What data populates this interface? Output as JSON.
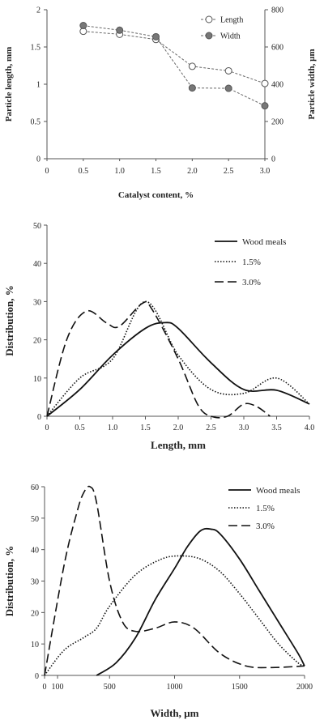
{
  "chart_data": [
    {
      "type": "line",
      "title": "",
      "xlabel": "Catalyst content, %",
      "ylabel": "Particle length, mm",
      "y2label": "Particle width, µm",
      "xlim": [
        0,
        3.0
      ],
      "ylim": [
        0,
        2
      ],
      "y2lim": [
        0,
        800
      ],
      "x_ticks": [
        "0",
        "0.5",
        "1.0",
        "1.5",
        "2.0",
        "2.5",
        "3.0"
      ],
      "y_ticks": [
        "0",
        "0.5",
        "1",
        "1.5",
        "2"
      ],
      "y2_ticks": [
        "0",
        "200",
        "400",
        "600",
        "800"
      ],
      "legend_position": "top-right",
      "x": [
        0.5,
        1.0,
        1.5,
        2.0,
        2.5,
        3.0
      ],
      "series": [
        {
          "name": "Length",
          "axis": "left",
          "marker": "open-circle",
          "values": [
            1.71,
            1.67,
            1.6,
            1.24,
            1.18,
            1.01
          ]
        },
        {
          "name": "Width",
          "axis": "right",
          "marker": "filled-circle",
          "values": [
            715,
            690,
            655,
            380,
            378,
            284
          ]
        }
      ]
    },
    {
      "type": "line",
      "title": "",
      "xlabel": "Length, mm",
      "ylabel": "Distribution, %",
      "xlim": [
        0,
        4.0
      ],
      "ylim": [
        0,
        50
      ],
      "x_ticks": [
        "0",
        "0.5",
        "1.0",
        "1.5",
        "2.0",
        "2.5",
        "3.0",
        "3.5",
        "4.0"
      ],
      "y_ticks": [
        "0",
        "10",
        "20",
        "30",
        "40",
        "50"
      ],
      "legend_position": "top-right",
      "series": [
        {
          "name": "Wood meals",
          "style": "solid",
          "points": [
            [
              0,
              0
            ],
            [
              0.5,
              7
            ],
            [
              1.0,
              16
            ],
            [
              1.5,
              23
            ],
            [
              1.8,
              24.5
            ],
            [
              2.0,
              23
            ],
            [
              2.5,
              14
            ],
            [
              3.0,
              7
            ],
            [
              3.5,
              6.8
            ],
            [
              4.0,
              3.2
            ]
          ]
        },
        {
          "name": "1.5%",
          "style": "dotted",
          "points": [
            [
              0,
              0
            ],
            [
              0.5,
              10
            ],
            [
              1.0,
              15
            ],
            [
              1.5,
              30
            ],
            [
              2.0,
              16
            ],
            [
              2.5,
              7
            ],
            [
              3.0,
              6
            ],
            [
              3.5,
              10
            ],
            [
              4.0,
              3.2
            ]
          ]
        },
        {
          "name": "3.0%",
          "style": "dashed",
          "points": [
            [
              0,
              0
            ],
            [
              0.3,
              20
            ],
            [
              0.6,
              27.5
            ],
            [
              0.9,
              24.5
            ],
            [
              1.1,
              23.5
            ],
            [
              1.45,
              29.5
            ],
            [
              1.6,
              28
            ],
            [
              2.0,
              15
            ],
            [
              2.3,
              3
            ],
            [
              2.5,
              0
            ],
            [
              2.75,
              0
            ],
            [
              3.0,
              3.2
            ],
            [
              3.2,
              2.5
            ],
            [
              3.4,
              0
            ]
          ]
        }
      ]
    },
    {
      "type": "line",
      "title": "",
      "xlabel": "Width, µm",
      "ylabel": "Distribution, %",
      "xlim": [
        0,
        2000
      ],
      "ylim": [
        0,
        60
      ],
      "x_ticks": [
        "0",
        "100",
        "500",
        "1000",
        "1500",
        "2000"
      ],
      "y_ticks": [
        "0",
        "10",
        "20",
        "30",
        "40",
        "50",
        "60"
      ],
      "legend_position": "top-right",
      "series": [
        {
          "name": "Wood meals",
          "style": "solid",
          "points": [
            [
              400,
              0
            ],
            [
              550,
              4
            ],
            [
              700,
              12
            ],
            [
              850,
              24
            ],
            [
              1000,
              34
            ],
            [
              1100,
              41
            ],
            [
              1200,
              46
            ],
            [
              1280,
              46.5
            ],
            [
              1350,
              45
            ],
            [
              1500,
              37
            ],
            [
              1650,
              27
            ],
            [
              1800,
              17
            ],
            [
              1950,
              7
            ],
            [
              2000,
              3
            ]
          ]
        },
        {
          "name": "1.5%",
          "style": "dotted",
          "points": [
            [
              0,
              0
            ],
            [
              150,
              8
            ],
            [
              300,
              12
            ],
            [
              400,
              15
            ],
            [
              500,
              22
            ],
            [
              700,
              32
            ],
            [
              900,
              37
            ],
            [
              1050,
              38
            ],
            [
              1200,
              37
            ],
            [
              1350,
              33
            ],
            [
              1500,
              26
            ],
            [
              1650,
              18
            ],
            [
              1800,
              10
            ],
            [
              1950,
              4
            ],
            [
              2000,
              3
            ]
          ]
        },
        {
          "name": "3.0%",
          "style": "dashed",
          "points": [
            [
              0,
              0
            ],
            [
              150,
              35
            ],
            [
              250,
              52
            ],
            [
              300,
              58
            ],
            [
              350,
              60
            ],
            [
              400,
              55
            ],
            [
              500,
              30
            ],
            [
              600,
              17
            ],
            [
              700,
              14
            ],
            [
              850,
              15
            ],
            [
              1000,
              17
            ],
            [
              1150,
              15
            ],
            [
              1350,
              7
            ],
            [
              1550,
              3
            ],
            [
              1750,
              2.5
            ],
            [
              2000,
              3
            ]
          ]
        }
      ]
    }
  ]
}
